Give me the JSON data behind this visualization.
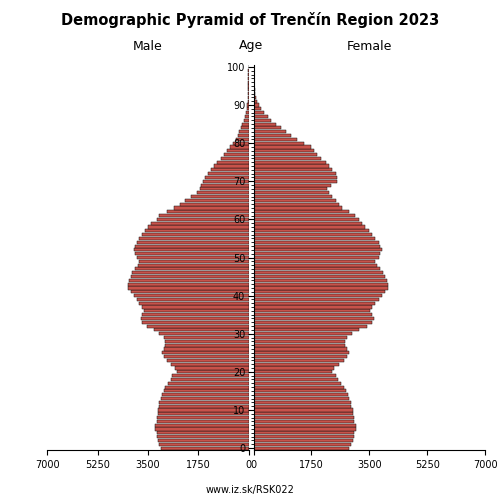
{
  "title": "Demographic Pyramid of Trenčín Region 2023",
  "male_label": "Male",
  "female_label": "Female",
  "age_label": "Age",
  "source": "www.iz.sk/RSK022",
  "xlim": 7000,
  "bar_color": "#C8524A",
  "bar_edgecolor": "#111111",
  "bar_linewidth": 0.35,
  "bar_height": 0.82,
  "ages": [
    0,
    1,
    2,
    3,
    4,
    5,
    6,
    7,
    8,
    9,
    10,
    11,
    12,
    13,
    14,
    15,
    16,
    17,
    18,
    19,
    20,
    21,
    22,
    23,
    24,
    25,
    26,
    27,
    28,
    29,
    30,
    31,
    32,
    33,
    34,
    35,
    36,
    37,
    38,
    39,
    40,
    41,
    42,
    43,
    44,
    45,
    46,
    47,
    48,
    49,
    50,
    51,
    52,
    53,
    54,
    55,
    56,
    57,
    58,
    59,
    60,
    61,
    62,
    63,
    64,
    65,
    66,
    67,
    68,
    69,
    70,
    71,
    72,
    73,
    74,
    75,
    76,
    77,
    78,
    79,
    80,
    81,
    82,
    83,
    84,
    85,
    86,
    87,
    88,
    89,
    90,
    91,
    92,
    93,
    94,
    95,
    96,
    97,
    98,
    99,
    100
  ],
  "male": [
    3050,
    3100,
    3150,
    3200,
    3200,
    3250,
    3250,
    3200,
    3180,
    3150,
    3150,
    3100,
    3100,
    3050,
    3000,
    2950,
    2900,
    2800,
    2700,
    2650,
    2500,
    2550,
    2700,
    2850,
    2950,
    3000,
    2950,
    2900,
    2900,
    2950,
    3100,
    3300,
    3550,
    3700,
    3750,
    3700,
    3650,
    3700,
    3800,
    3900,
    4000,
    4100,
    4200,
    4200,
    4150,
    4100,
    4050,
    3950,
    3850,
    3800,
    3900,
    3950,
    4000,
    3950,
    3900,
    3800,
    3700,
    3600,
    3500,
    3400,
    3200,
    3100,
    2850,
    2600,
    2400,
    2200,
    2000,
    1800,
    1700,
    1650,
    1600,
    1500,
    1400,
    1300,
    1200,
    1100,
    950,
    850,
    750,
    650,
    550,
    450,
    380,
    320,
    260,
    210,
    160,
    120,
    90,
    65,
    45,
    30,
    20,
    13,
    8,
    5,
    3,
    2,
    1,
    1,
    0
  ],
  "female": [
    2900,
    2950,
    3000,
    3050,
    3050,
    3100,
    3100,
    3050,
    3030,
    3000,
    3000,
    2950,
    2950,
    2900,
    2850,
    2800,
    2750,
    2650,
    2550,
    2500,
    2380,
    2430,
    2580,
    2730,
    2830,
    2880,
    2830,
    2780,
    2780,
    2830,
    2980,
    3180,
    3430,
    3580,
    3630,
    3580,
    3530,
    3580,
    3680,
    3780,
    3880,
    3980,
    4080,
    4080,
    4030,
    3980,
    3930,
    3830,
    3730,
    3680,
    3780,
    3830,
    3880,
    3830,
    3780,
    3680,
    3580,
    3480,
    3380,
    3280,
    3180,
    3080,
    2880,
    2680,
    2580,
    2480,
    2380,
    2280,
    2230,
    2330,
    2530,
    2530,
    2480,
    2380,
    2280,
    2180,
    2030,
    1930,
    1830,
    1730,
    1530,
    1330,
    1130,
    980,
    830,
    680,
    540,
    430,
    330,
    240,
    170,
    120,
    85,
    55,
    38,
    24,
    15,
    9,
    5,
    3,
    1
  ]
}
